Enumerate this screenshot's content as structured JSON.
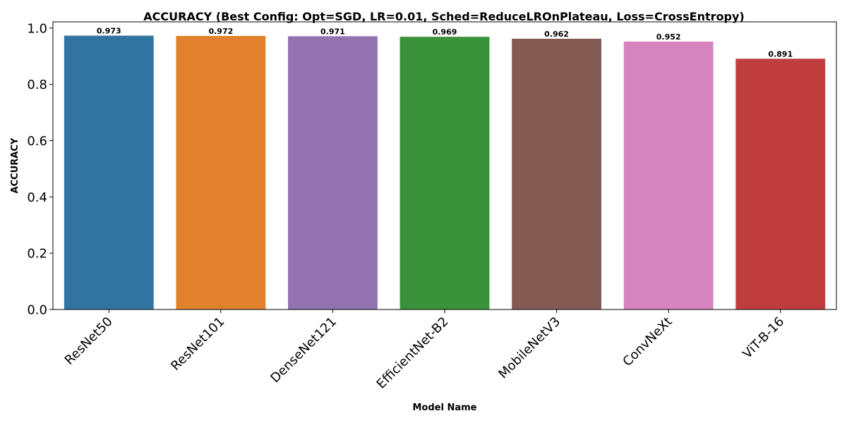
{
  "chart_data": {
    "type": "bar",
    "title": "ACCURACY (Best Config: Opt=SGD, LR=0.01, Sched=ReduceLROnPlateau, Loss=CrossEntropy)",
    "xlabel": "Model Name",
    "ylabel": "ACCURACY",
    "categories": [
      "ResNet50",
      "ResNet101",
      "DenseNet121",
      "EfficientNet-B2",
      "MobileNetV3",
      "ConvNeXt",
      "ViT-B-16"
    ],
    "values": [
      0.973,
      0.972,
      0.971,
      0.969,
      0.962,
      0.952,
      0.891
    ],
    "data_labels": [
      "0.973",
      "0.972",
      "0.971",
      "0.969",
      "0.962",
      "0.952",
      "0.891"
    ],
    "colors": [
      "#3274a1",
      "#e1812c",
      "#9372b2",
      "#3a923a",
      "#845b53",
      "#d684bd",
      "#c03d3e"
    ],
    "ylim": [
      0,
      1.022
    ],
    "yticks": [
      0.0,
      0.2,
      0.4,
      0.6,
      0.8,
      1.0
    ],
    "ytick_labels": [
      "0.0",
      "0.2",
      "0.4",
      "0.6",
      "0.8",
      "1.0"
    ],
    "grid": false,
    "legend": "none"
  }
}
